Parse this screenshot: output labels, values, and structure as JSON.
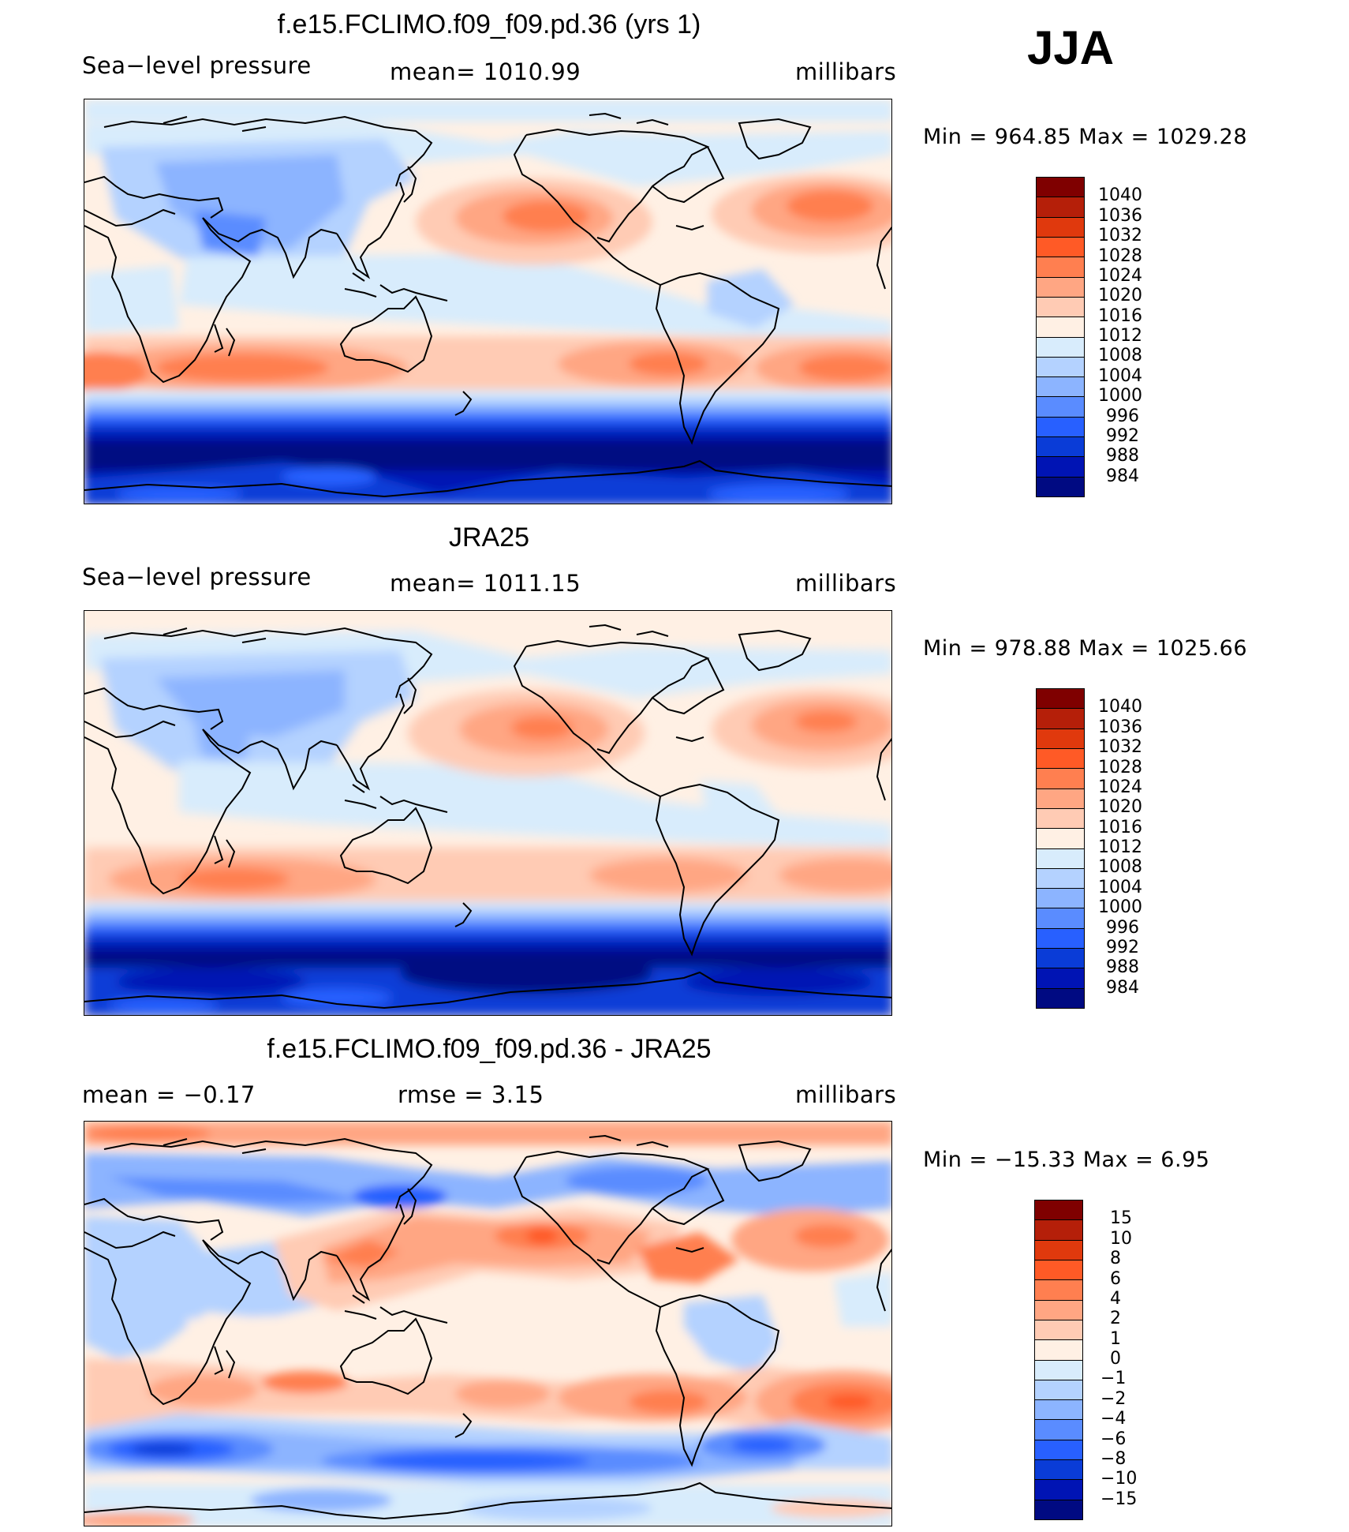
{
  "season": "JJA",
  "colors": {
    "absolute_scale": [
      "#7f0000",
      "#b51f09",
      "#e0390d",
      "#ff5a26",
      "#ff7f50",
      "#ffa683",
      "#ffcbb4",
      "#fff0e4",
      "#d8ecfc",
      "#b4d2ff",
      "#8cb4ff",
      "#5a8cff",
      "#2860ff",
      "#0a3cd7",
      "#0014b4",
      "#000a82"
    ],
    "difference_scale": [
      "#7f0000",
      "#b51f09",
      "#e0390d",
      "#ff5a26",
      "#ff7f50",
      "#ffa683",
      "#ffcbb4",
      "#fff0e4",
      "#d8ecfc",
      "#b4d2ff",
      "#8cb4ff",
      "#5a8cff",
      "#2860ff",
      "#0a3cd7",
      "#0014b4",
      "#000a82"
    ],
    "coastline": "#000000"
  },
  "panels": [
    {
      "title": "f.e15.FCLIMO.f09_f09.pd.36 (yrs 1)",
      "variable": "Sea−level pressure",
      "stat_center": "mean=  1010.99",
      "units": "millibars",
      "minmax": "Min  =  964.85  Max  =  1029.28",
      "levels": [
        "1040",
        "1036",
        "1032",
        "1028",
        "1024",
        "1020",
        "1016",
        "1012",
        "1008",
        "1004",
        "1000",
        "996",
        "992",
        "988",
        "984"
      ],
      "scale": "absolute_scale",
      "features": {
        "subtropical_highs": [
          "North Pacific High",
          "Azores High",
          "South Pacific High",
          "South Atlantic High",
          "South Indian High"
        ],
        "southern_ocean_low": true
      }
    },
    {
      "title": "JRA25",
      "variable": "Sea−level pressure",
      "stat_center": "mean=  1011.15",
      "units": "millibars",
      "minmax": "Min  =  978.88  Max  =  1025.66",
      "levels": [
        "1040",
        "1036",
        "1032",
        "1028",
        "1024",
        "1020",
        "1016",
        "1012",
        "1008",
        "1004",
        "1000",
        "996",
        "992",
        "988",
        "984"
      ],
      "scale": "absolute_scale"
    },
    {
      "title": "f.e15.FCLIMO.f09_f09.pd.36 - JRA25",
      "variable": "mean  =    −0.17",
      "stat_center": "rmse  =      3.15",
      "units": "millibars",
      "minmax": "Min  =  −15.33  Max  =      6.95",
      "levels": [
        "15",
        "10",
        "8",
        "6",
        "4",
        "2",
        "1",
        "0",
        "−1",
        "−2",
        "−4",
        "−6",
        "−8",
        "−10",
        "−15"
      ],
      "scale": "difference_scale"
    }
  ]
}
